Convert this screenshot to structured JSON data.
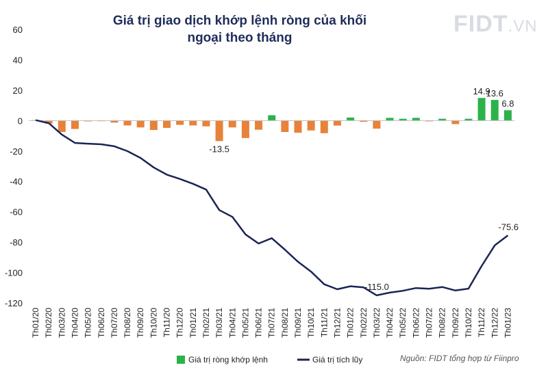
{
  "chart_data": {
    "type": "bar",
    "title": "Giá trị giao dịch khớp lệnh ròng của khối ngoại theo tháng",
    "categories": [
      "Th01/20",
      "Th02/20",
      "Th03/20",
      "Th04/20",
      "Th05/20",
      "Th06/20",
      "Th07/20",
      "Th08/20",
      "Th09/20",
      "Th10/20",
      "Th11/20",
      "Th12/20",
      "Th01/21",
      "Th02/21",
      "Th03/21",
      "Th04/21",
      "Th05/21",
      "Th06/21",
      "Th07/21",
      "Th08/21",
      "Th09/21",
      "Th10/21",
      "Th11/21",
      "Th12/21",
      "Th01/22",
      "Th02/22",
      "Th03/22",
      "Th04/22",
      "Th05/22",
      "Th06/22",
      "Th07/22",
      "Th08/22",
      "Th09/22",
      "Th10/22",
      "Th11/22",
      "Th12/22",
      "Th01/23"
    ],
    "ylim": [
      -120,
      60
    ],
    "yticks": [
      60,
      40,
      20,
      0,
      -20,
      -40,
      -60,
      -80,
      -100,
      -120
    ],
    "grid": false,
    "legend": "bottom",
    "series": [
      {
        "name": "Giá trị ròng khớp lệnh",
        "type": "bar",
        "positive_color": "#2bb34a",
        "negative_color": "#e8823a",
        "values": [
          0.3,
          -2.0,
          -7.5,
          -5.5,
          -0.5,
          -0.4,
          -1.3,
          -3.2,
          -4.5,
          -6.2,
          -4.8,
          -2.8,
          -3.2,
          -3.8,
          -13.5,
          -4.5,
          -11.5,
          -6.0,
          3.5,
          -7.5,
          -8.0,
          -6.5,
          -8.3,
          -3.3,
          2.0,
          -0.8,
          -5.3,
          1.8,
          1.2,
          1.8,
          -0.5,
          1.2,
          -2.3,
          1.2,
          14.9,
          13.6,
          6.8
        ]
      },
      {
        "name": "Giá trị tích lũy",
        "type": "line",
        "color": "#1a2456",
        "values": [
          0.3,
          -1.7,
          -9.2,
          -14.7,
          -15.2,
          -15.6,
          -16.9,
          -20.1,
          -24.6,
          -30.8,
          -35.6,
          -38.4,
          -41.6,
          -45.4,
          -58.9,
          -63.4,
          -74.9,
          -80.9,
          -77.4,
          -84.9,
          -92.9,
          -99.4,
          -107.7,
          -111.0,
          -109.0,
          -109.8,
          -115.0,
          -113.2,
          -112.0,
          -110.2,
          -110.7,
          -109.5,
          -111.8,
          -110.6,
          -95.7,
          -82.1,
          -75.6
        ]
      }
    ],
    "annotations": [
      {
        "series": 0,
        "index": 14,
        "text": "-13.5"
      },
      {
        "series": 0,
        "index": 34,
        "text": "14.9"
      },
      {
        "series": 0,
        "index": 35,
        "text": "13.6"
      },
      {
        "series": 0,
        "index": 36,
        "text": "6.8"
      },
      {
        "series": 1,
        "index": 26,
        "text": "-115.0"
      },
      {
        "series": 1,
        "index": 36,
        "text": "-75.6"
      }
    ]
  },
  "logo": {
    "main": "FIDT",
    "suffix": ".VN"
  },
  "source": "Nguồn: FIDT tổng hợp từ Fiinpro"
}
